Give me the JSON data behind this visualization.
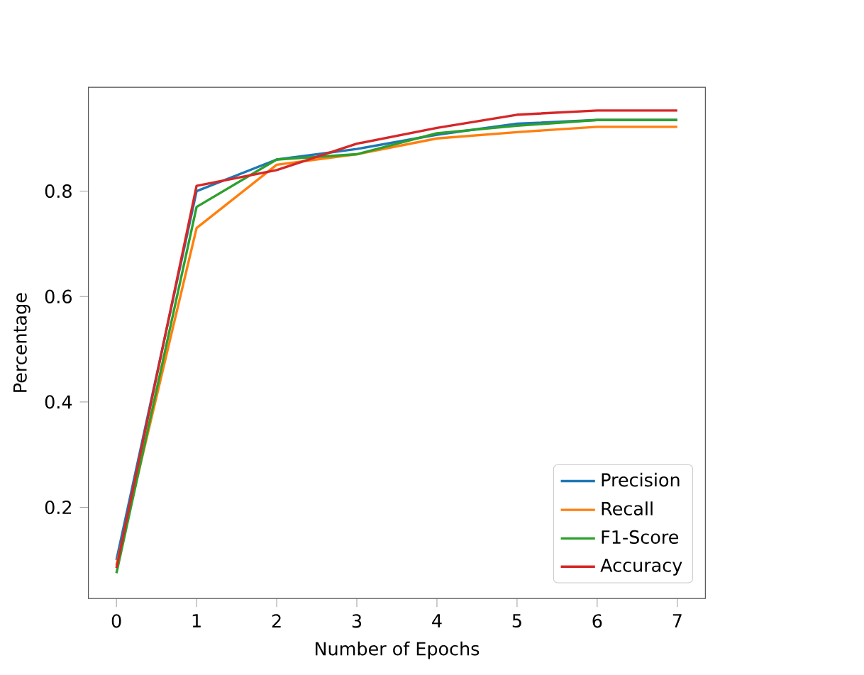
{
  "chart_data": {
    "type": "line",
    "xlabel": "Number of Epochs",
    "ylabel": "Percentage",
    "x": [
      0,
      1,
      2,
      3,
      4,
      5,
      6,
      7
    ],
    "xlim": [
      -0.35,
      7.35
    ],
    "ylim": [
      0.027,
      0.997
    ],
    "xticks": [
      0,
      1,
      2,
      3,
      4,
      5,
      6,
      7
    ],
    "yticks": [
      0.2,
      0.4,
      0.6,
      0.8
    ],
    "legend": "bottom right",
    "grid": false,
    "marker": "none",
    "line_style": "solid",
    "series": [
      {
        "name": "Precision",
        "color": "#1f77b4",
        "values": [
          0.1,
          0.8,
          0.86,
          0.88,
          0.907,
          0.928,
          0.935,
          0.935
        ]
      },
      {
        "name": "Recall",
        "color": "#ff7f0e",
        "values": [
          0.09,
          0.73,
          0.85,
          0.87,
          0.9,
          0.912,
          0.922,
          0.922
        ]
      },
      {
        "name": "F1-Score",
        "color": "#2ca02c",
        "values": [
          0.075,
          0.77,
          0.86,
          0.87,
          0.91,
          0.924,
          0.935,
          0.935
        ]
      },
      {
        "name": "Accuracy",
        "color": "#d62728",
        "values": [
          0.085,
          0.81,
          0.84,
          0.89,
          0.92,
          0.945,
          0.953,
          0.953
        ]
      }
    ]
  }
}
